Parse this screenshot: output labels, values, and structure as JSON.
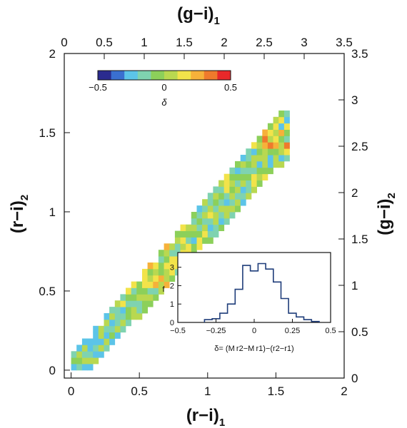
{
  "chart_data": {
    "type": "heatmap",
    "title": "",
    "axes": {
      "bottom": {
        "label": "(r−i)",
        "sub": "1",
        "range": [
          -0.05,
          2.0
        ],
        "ticks": [
          "0",
          "0.5",
          "1",
          "1.5",
          "2"
        ]
      },
      "top": {
        "label": "(g−i)",
        "sub": "1",
        "range": [
          0,
          3.5
        ],
        "ticks": [
          "0",
          "0.5",
          "1",
          "1.5",
          "2",
          "2.5",
          "3",
          "3.5"
        ]
      },
      "left": {
        "label": "(r−i)",
        "sub": "2",
        "range": [
          -0.05,
          2.0
        ],
        "ticks": [
          "0",
          "0.5",
          "1",
          "1.5",
          "2"
        ]
      },
      "right": {
        "label": "(g−i)",
        "sub": "2",
        "range": [
          0,
          3.5
        ],
        "ticks": [
          "0",
          "0.5",
          "1",
          "1.5",
          "2",
          "2.5",
          "3",
          "3.5"
        ]
      }
    },
    "colorbar": {
      "label": "δ",
      "range": [
        -0.5,
        0.5
      ],
      "ticks": [
        "−0.5",
        "0",
        "0.5"
      ],
      "colors": [
        "#2b2b8f",
        "#3a6fd0",
        "#5cc4e8",
        "#7fd3b0",
        "#8cd05a",
        "#b9d850",
        "#f2e34a",
        "#f6b13a",
        "#ef7a2c",
        "#e8282a"
      ]
    },
    "colormap_ranges": [
      {
        "range": [
          -0.5,
          -0.3
        ],
        "color": "#2b2b8f"
      },
      {
        "range": [
          -0.3,
          -0.15
        ],
        "color": "#3a6fd0"
      },
      {
        "range": [
          -0.15,
          -0.05
        ],
        "color": "#5cc4e8"
      },
      {
        "range": [
          -0.05,
          0.02
        ],
        "color": "#7fd3b0"
      },
      {
        "range": [
          0.02,
          0.08
        ],
        "color": "#8cd05a"
      },
      {
        "range": [
          0.08,
          0.15
        ],
        "color": "#b9d850"
      },
      {
        "range": [
          0.15,
          0.22
        ],
        "color": "#f2e34a"
      },
      {
        "range": [
          0.22,
          0.3
        ],
        "color": "#f6b13a"
      },
      {
        "range": [
          0.3,
          0.4
        ],
        "color": "#ef7a2c"
      },
      {
        "range": [
          0.4,
          0.5
        ],
        "color": "#e8282a"
      }
    ],
    "cell_size": 0.04,
    "grid": false,
    "inset": {
      "type": "step",
      "xlabel": "δ= (M r2−M r1)−(r2−r1)",
      "ylabel": "f",
      "xlim": [
        -0.5,
        0.5
      ],
      "ylim": [
        0,
        3.8
      ],
      "xticks": [
        "−0.5",
        "−0.25",
        "0",
        "0.25",
        "0.5"
      ],
      "yticks": [
        "0",
        "1",
        "2",
        "3"
      ],
      "x": [
        -0.3,
        -0.25,
        -0.2,
        -0.15,
        -0.1,
        -0.05,
        0.0,
        0.05,
        0.1,
        0.15,
        0.2,
        0.25,
        0.3,
        0.35,
        0.4
      ],
      "f": [
        0.15,
        0.2,
        0.5,
        1.0,
        1.8,
        3.1,
        2.8,
        3.2,
        2.9,
        2.2,
        1.3,
        0.5,
        0.3,
        0.15,
        0.05
      ],
      "color": "#1f3d7a"
    }
  }
}
